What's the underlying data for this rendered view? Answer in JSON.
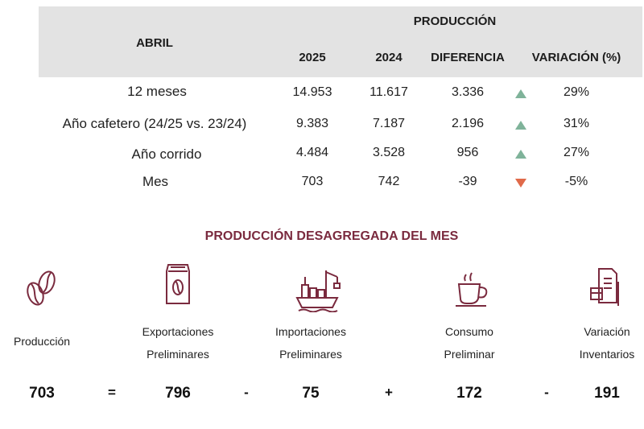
{
  "table": {
    "header": {
      "period": "ABRIL",
      "group": "PRODUCCIÓN",
      "col_2025": "2025",
      "col_2024": "2024",
      "col_diff": "DIFERENCIA",
      "col_var": "VARIACIÓN (%)"
    },
    "rows": [
      {
        "label": "12 meses",
        "v2025": "14.953",
        "v2024": "11.617",
        "diff": "3.336",
        "trend": "up",
        "var": "29%"
      },
      {
        "label": "Año cafetero (24/25 vs. 23/24)",
        "v2025": "9.383",
        "v2024": "7.187",
        "diff": "2.196",
        "trend": "up",
        "var": "31%"
      },
      {
        "label": "Año corrido",
        "v2025": "4.484",
        "v2024": "3.528",
        "diff": "956",
        "trend": "up",
        "var": "27%"
      },
      {
        "label": "Mes",
        "v2025": "703",
        "v2024": "742",
        "diff": "-39",
        "trend": "down",
        "var": "-5%"
      }
    ]
  },
  "breakdown": {
    "title": "PRODUCCIÓN DESAGREGADA DEL MES",
    "accent_color": "#7a2a3e",
    "items": [
      {
        "icon": "coffee-beans-icon",
        "label1": "Producción",
        "label2": "",
        "value": "703"
      },
      {
        "icon": "coffee-bag-icon",
        "label1": "Exportaciones",
        "label2": "Preliminares",
        "value": "796"
      },
      {
        "icon": "cargo-ship-icon",
        "label1": "Importaciones",
        "label2": "Preliminares",
        "value": "75"
      },
      {
        "icon": "coffee-cup-icon",
        "label1": "Consumo",
        "label2": "Preliminar",
        "value": "172"
      },
      {
        "icon": "inventory-document-icon",
        "label1": "Variación",
        "label2": "Inventarios",
        "value": "191"
      }
    ],
    "operators": [
      "=",
      "-",
      "+",
      "-"
    ]
  }
}
